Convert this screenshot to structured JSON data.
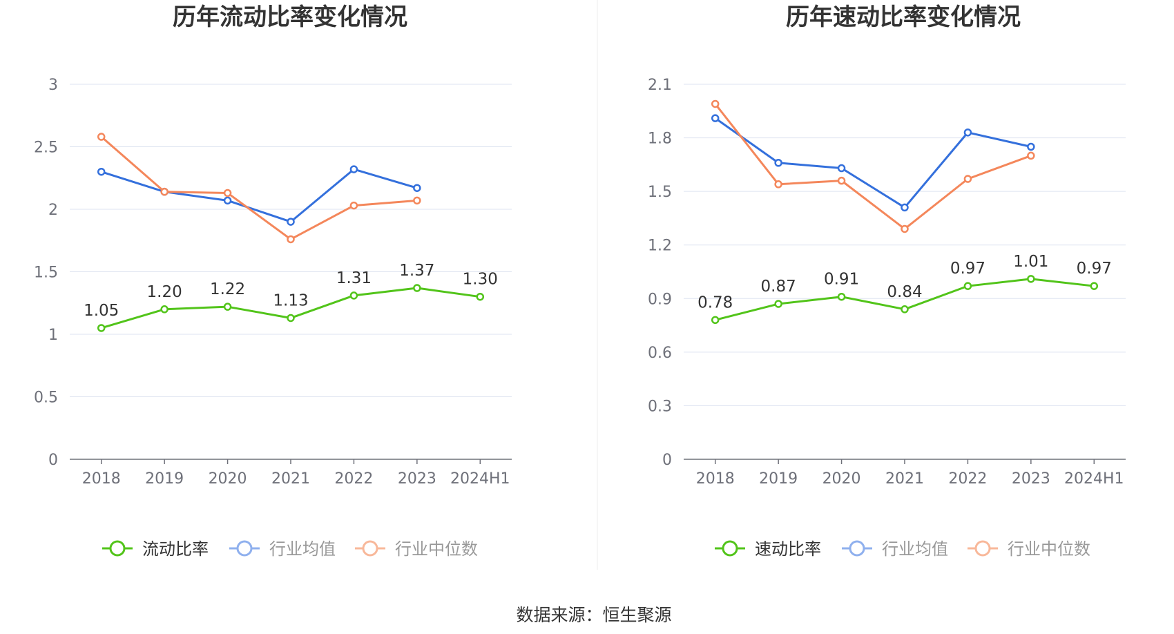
{
  "source_text": "数据来源：恒生聚源",
  "colors": {
    "company": "#52c41a",
    "average": "#3470dc",
    "median": "#f4875b",
    "legend_average": "#8fb0ee",
    "legend_median": "#f8b89a",
    "grid": "#dde3f0",
    "axis": "#6e7079",
    "divider": "#eeeeee"
  },
  "chart_data": [
    {
      "type": "line",
      "title": "历年流动比率变化情况",
      "categories": [
        "2018",
        "2019",
        "2020",
        "2021",
        "2022",
        "2023",
        "2024H1"
      ],
      "ylim": [
        0,
        3
      ],
      "yticks": [
        "0",
        "0.5",
        "1",
        "1.5",
        "2",
        "2.5",
        "3"
      ],
      "grid": true,
      "legend_position": "bottom",
      "series": [
        {
          "name": "流动比率",
          "role": "company",
          "values": [
            1.05,
            1.2,
            1.22,
            1.13,
            1.31,
            1.37,
            1.3
          ],
          "labels": [
            "1.05",
            "1.20",
            "1.22",
            "1.13",
            "1.31",
            "1.37",
            "1.30"
          ]
        },
        {
          "name": "行业均值",
          "role": "average",
          "values": [
            2.3,
            2.14,
            2.07,
            1.9,
            2.32,
            2.17,
            null
          ]
        },
        {
          "name": "行业中位数",
          "role": "median",
          "values": [
            2.58,
            2.14,
            2.13,
            1.76,
            2.03,
            2.07,
            null
          ]
        }
      ]
    },
    {
      "type": "line",
      "title": "历年速动比率变化情况",
      "categories": [
        "2018",
        "2019",
        "2020",
        "2021",
        "2022",
        "2023",
        "2024H1"
      ],
      "ylim": [
        0,
        2.1
      ],
      "yticks": [
        "0",
        "0.3",
        "0.6",
        "0.9",
        "1.2",
        "1.5",
        "1.8",
        "2.1"
      ],
      "grid": true,
      "legend_position": "bottom",
      "series": [
        {
          "name": "速动比率",
          "role": "company",
          "values": [
            0.78,
            0.87,
            0.91,
            0.84,
            0.97,
            1.01,
            0.97
          ],
          "labels": [
            "0.78",
            "0.87",
            "0.91",
            "0.84",
            "0.97",
            "1.01",
            "0.97"
          ]
        },
        {
          "name": "行业均值",
          "role": "average",
          "values": [
            1.91,
            1.66,
            1.63,
            1.41,
            1.83,
            1.75,
            null
          ]
        },
        {
          "name": "行业中位数",
          "role": "median",
          "values": [
            1.99,
            1.54,
            1.56,
            1.29,
            1.57,
            1.7,
            null
          ]
        }
      ]
    }
  ]
}
